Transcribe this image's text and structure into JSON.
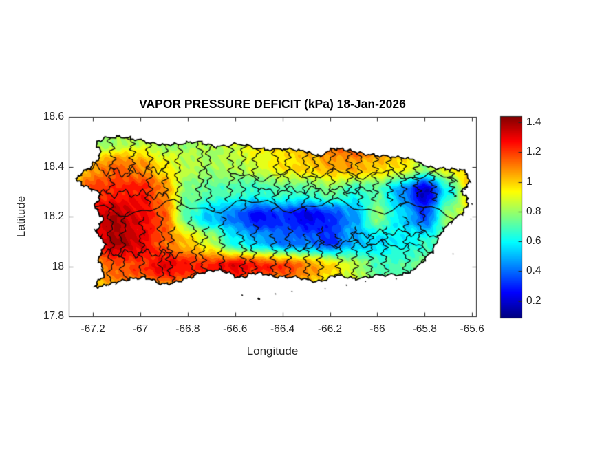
{
  "chart_data": {
    "type": "heatmap",
    "title": "VAPOR PRESSURE DEFICIT (kPa) 18-Jan-2026",
    "variable": "Vapor Pressure Deficit",
    "units": "kPa",
    "date": "18-Jan-2026",
    "xlabel": "Longitude",
    "ylabel": "Latitude",
    "xlim": [
      -67.302,
      -65.583
    ],
    "ylim": [
      17.8,
      18.6
    ],
    "xticks": [
      -67.2,
      -67,
      -66.8,
      -66.6,
      -66.4,
      -66.2,
      -66,
      -65.8,
      -65.6
    ],
    "yticks": [
      17.8,
      18,
      18.2,
      18.4,
      18.6
    ],
    "colormap": "jet",
    "clim": [
      0.087,
      1.442
    ],
    "contour_step": 0.05,
    "colorbar_ticks": [
      0.2,
      0.4,
      0.6,
      0.8,
      1,
      1.2,
      1.4
    ],
    "legend_position": "right",
    "grid": false,
    "grid_lon": [
      -67.3,
      -67.2,
      -67.1,
      -67.0,
      -66.9,
      -66.8,
      -66.7,
      -66.6,
      -66.5,
      -66.4,
      -66.3,
      -66.2,
      -66.1,
      -66.0,
      -65.9,
      -65.8,
      -65.7,
      -65.6,
      -65.5
    ],
    "grid_lat": [
      18.5,
      18.4,
      18.3,
      18.2,
      18.1,
      18.0,
      17.9
    ],
    "values": [
      [
        0.75,
        0.78,
        0.82,
        0.85,
        0.8,
        0.8,
        0.82,
        0.88,
        0.95,
        1.0,
        1.05,
        1.15,
        1.2,
        1.15,
        1.1,
        1.0,
        0.95,
        0.9,
        0.9
      ],
      [
        0.9,
        1.05,
        1.15,
        1.1,
        0.95,
        0.85,
        0.8,
        0.82,
        0.88,
        0.95,
        1.0,
        1.05,
        1.05,
        1.0,
        0.95,
        0.8,
        0.95,
        1.05,
        1.0
      ],
      [
        1.0,
        1.2,
        1.25,
        1.25,
        1.1,
        0.75,
        0.7,
        0.7,
        0.65,
        0.7,
        0.7,
        0.75,
        0.65,
        0.7,
        0.45,
        0.18,
        0.6,
        1.0,
        1.0
      ],
      [
        1.2,
        1.3,
        1.38,
        1.3,
        1.15,
        0.7,
        0.5,
        0.4,
        0.25,
        0.3,
        0.22,
        0.3,
        0.45,
        0.8,
        0.55,
        0.35,
        0.8,
        0.9,
        0.9
      ],
      [
        1.05,
        1.25,
        1.4,
        1.3,
        1.15,
        1.0,
        0.85,
        0.6,
        0.5,
        0.4,
        0.4,
        0.3,
        0.5,
        0.55,
        0.6,
        0.65,
        0.75,
        0.85,
        0.85
      ],
      [
        1.0,
        1.05,
        1.15,
        1.2,
        1.3,
        1.25,
        1.25,
        1.3,
        1.25,
        1.2,
        1.1,
        1.0,
        0.85,
        0.7,
        0.7,
        0.75,
        0.8,
        0.85,
        0.85
      ],
      [
        0.95,
        1.0,
        1.05,
        1.05,
        1.05,
        1.0,
        1.05,
        1.05,
        1.0,
        1.0,
        0.95,
        0.9,
        0.85,
        0.8,
        0.8,
        0.85,
        0.85,
        0.85,
        0.85
      ]
    ],
    "coastline": [
      [
        -67.18,
        18.5
      ],
      [
        -67.1,
        18.52
      ],
      [
        -67.02,
        18.51
      ],
      [
        -66.93,
        18.49
      ],
      [
        -66.85,
        18.49
      ],
      [
        -66.76,
        18.5
      ],
      [
        -66.68,
        18.48
      ],
      [
        -66.58,
        18.49
      ],
      [
        -66.48,
        18.47
      ],
      [
        -66.38,
        18.47
      ],
      [
        -66.3,
        18.46
      ],
      [
        -66.24,
        18.445
      ],
      [
        -66.19,
        18.47
      ],
      [
        -66.12,
        18.465
      ],
      [
        -66.04,
        18.45
      ],
      [
        -65.95,
        18.44
      ],
      [
        -65.86,
        18.43
      ],
      [
        -65.78,
        18.4
      ],
      [
        -65.7,
        18.39
      ],
      [
        -65.63,
        18.38
      ],
      [
        -65.615,
        18.33
      ],
      [
        -65.645,
        18.3
      ],
      [
        -65.62,
        18.27
      ],
      [
        -65.635,
        18.22
      ],
      [
        -65.7,
        18.17
      ],
      [
        -65.74,
        18.12
      ],
      [
        -65.77,
        18.06
      ],
      [
        -65.83,
        18.0
      ],
      [
        -65.89,
        17.97
      ],
      [
        -65.99,
        17.965
      ],
      [
        -66.09,
        17.95
      ],
      [
        -66.17,
        17.965
      ],
      [
        -66.25,
        17.94
      ],
      [
        -66.34,
        17.955
      ],
      [
        -66.43,
        17.96
      ],
      [
        -66.51,
        17.975
      ],
      [
        -66.58,
        17.955
      ],
      [
        -66.66,
        17.985
      ],
      [
        -66.74,
        17.975
      ],
      [
        -66.82,
        17.945
      ],
      [
        -66.9,
        17.93
      ],
      [
        -66.98,
        17.955
      ],
      [
        -67.06,
        17.945
      ],
      [
        -67.13,
        17.93
      ],
      [
        -67.19,
        17.92
      ],
      [
        -67.155,
        17.97
      ],
      [
        -67.175,
        18.03
      ],
      [
        -67.15,
        18.09
      ],
      [
        -67.185,
        18.14
      ],
      [
        -67.16,
        18.19
      ],
      [
        -67.19,
        18.24
      ],
      [
        -67.17,
        18.29
      ],
      [
        -67.23,
        18.32
      ],
      [
        -67.265,
        18.355
      ],
      [
        -67.21,
        18.4
      ],
      [
        -67.17,
        18.45
      ]
    ],
    "islets": [
      [
        -66.5,
        17.87,
        2.2
      ],
      [
        -66.57,
        17.885,
        1.2
      ],
      [
        -66.43,
        17.89,
        1.2
      ],
      [
        -66.36,
        17.9,
        1.0
      ],
      [
        -66.22,
        17.91,
        1.0
      ],
      [
        -66.13,
        17.925,
        1.2
      ],
      [
        -66.05,
        17.94,
        1.0
      ],
      [
        -65.92,
        17.95,
        1.0
      ],
      [
        -65.63,
        18.31,
        1.3
      ],
      [
        -65.6,
        18.25,
        1.2
      ],
      [
        -65.605,
        18.19,
        1.0
      ],
      [
        -65.68,
        18.05,
        1.0
      ],
      [
        -67.24,
        18.385,
        1.0
      ]
    ],
    "boundaries": [
      {
        "o": "h",
        "y": 18.22,
        "a": -67.22,
        "b": -65.64,
        "m": 2
      },
      {
        "o": "h",
        "y": 18.4,
        "a": -67.23,
        "b": -66.88,
        "m": 1.4
      },
      {
        "o": "h",
        "y": 18.355,
        "a": -66.62,
        "b": -65.66,
        "m": 1.4
      },
      {
        "o": "h",
        "y": 18.3,
        "a": -66.5,
        "b": -66.02,
        "m": 1.2
      },
      {
        "o": "h",
        "y": 18.28,
        "a": -67.26,
        "b": -66.88,
        "m": 1.2
      },
      {
        "o": "h",
        "y": 18.05,
        "a": -67.19,
        "b": -66.82,
        "m": 1.2
      },
      {
        "o": "h",
        "y": 18.07,
        "a": -66.38,
        "b": -65.76,
        "m": 1.2
      },
      {
        "o": "h",
        "y": 18.12,
        "a": -66.12,
        "b": -65.7,
        "m": 1.0
      },
      {
        "o": "v",
        "x": -67.13,
        "a": 18.53,
        "b": 18.3
      },
      {
        "o": "v",
        "x": -67.05,
        "a": 18.54,
        "b": 18.36
      },
      {
        "o": "v",
        "x": -66.97,
        "a": 18.52,
        "b": 18.24
      },
      {
        "o": "v",
        "x": -66.9,
        "a": 18.53,
        "b": 18.28
      },
      {
        "o": "v",
        "x": -66.83,
        "a": 18.52,
        "b": 18.22
      },
      {
        "o": "v",
        "x": -66.76,
        "a": 18.53,
        "b": 18.26
      },
      {
        "o": "v",
        "x": -66.7,
        "a": 18.52,
        "b": 18.22
      },
      {
        "o": "v",
        "x": -66.63,
        "a": 18.52,
        "b": 18.26
      },
      {
        "o": "v",
        "x": -66.56,
        "a": 18.5,
        "b": 18.22
      },
      {
        "o": "v",
        "x": -66.5,
        "a": 18.5,
        "b": 18.26
      },
      {
        "o": "v",
        "x": -66.44,
        "a": 18.5,
        "b": 18.22
      },
      {
        "o": "v",
        "x": -66.37,
        "a": 18.49,
        "b": 18.26
      },
      {
        "o": "v",
        "x": -66.31,
        "a": 18.49,
        "b": 18.22
      },
      {
        "o": "v",
        "x": -66.25,
        "a": 18.48,
        "b": 18.26
      },
      {
        "o": "v",
        "x": -66.19,
        "a": 18.49,
        "b": 18.24
      },
      {
        "o": "v",
        "x": -66.13,
        "a": 18.49,
        "b": 18.28
      },
      {
        "o": "v",
        "x": -66.07,
        "a": 18.47,
        "b": 18.24
      },
      {
        "o": "v",
        "x": -66.01,
        "a": 18.47,
        "b": 18.26
      },
      {
        "o": "v",
        "x": -65.95,
        "a": 18.46,
        "b": 18.26
      },
      {
        "o": "v",
        "x": -65.89,
        "a": 18.45,
        "b": 18.24
      },
      {
        "o": "v",
        "x": -65.82,
        "a": 18.44,
        "b": 18.28
      },
      {
        "o": "v",
        "x": -65.75,
        "a": 18.42,
        "b": 18.26
      },
      {
        "o": "v",
        "x": -65.68,
        "a": 18.41,
        "b": 18.28
      },
      {
        "o": "v",
        "x": -67.13,
        "a": 18.26,
        "b": 17.9
      },
      {
        "o": "v",
        "x": -67.06,
        "a": 18.22,
        "b": 17.91
      },
      {
        "o": "v",
        "x": -66.99,
        "a": 18.2,
        "b": 17.92
      },
      {
        "o": "v",
        "x": -66.92,
        "a": 18.22,
        "b": 17.9
      },
      {
        "o": "v",
        "x": -66.86,
        "a": 18.16,
        "b": 17.92
      },
      {
        "o": "v",
        "x": -66.79,
        "a": 18.2,
        "b": 17.94
      },
      {
        "o": "v",
        "x": -66.72,
        "a": 18.16,
        "b": 17.95
      },
      {
        "o": "v",
        "x": -66.65,
        "a": 18.2,
        "b": 17.96
      },
      {
        "o": "v",
        "x": -66.58,
        "a": 18.14,
        "b": 17.93
      },
      {
        "o": "v",
        "x": -66.51,
        "a": 18.17,
        "b": 17.94
      },
      {
        "o": "v",
        "x": -66.44,
        "a": 18.13,
        "b": 17.93
      },
      {
        "o": "v",
        "x": -66.37,
        "a": 18.16,
        "b": 17.92
      },
      {
        "o": "v",
        "x": -66.3,
        "a": 18.13,
        "b": 17.92
      },
      {
        "o": "v",
        "x": -66.24,
        "a": 18.16,
        "b": 17.93
      },
      {
        "o": "v",
        "x": -66.17,
        "a": 18.13,
        "b": 17.94
      },
      {
        "o": "v",
        "x": -66.1,
        "a": 18.16,
        "b": 17.93
      },
      {
        "o": "v",
        "x": -66.03,
        "a": 18.13,
        "b": 17.94
      },
      {
        "o": "v",
        "x": -65.96,
        "a": 18.16,
        "b": 17.95
      },
      {
        "o": "v",
        "x": -65.88,
        "a": 18.2,
        "b": 17.96
      },
      {
        "o": "v",
        "x": -65.8,
        "a": 18.24,
        "b": 18.0
      }
    ],
    "colors": {
      "background": "#ffffff",
      "axis": "#262626",
      "coastline": "#000000",
      "boundary_lines": "#0d0d0d",
      "text": "#262626",
      "title_text": "#000000"
    }
  }
}
